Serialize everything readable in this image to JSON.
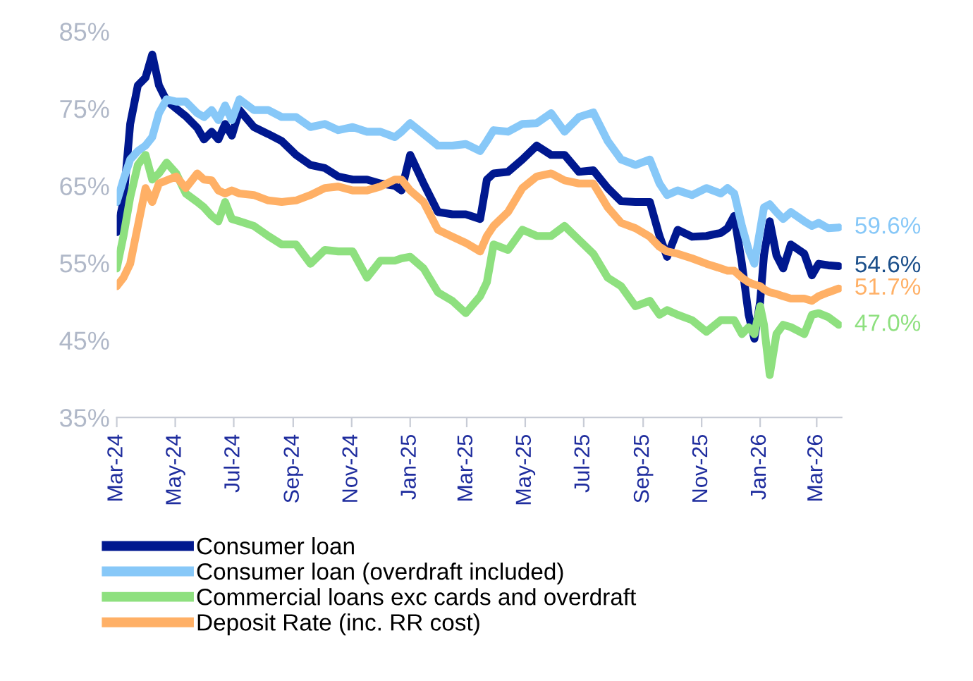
{
  "chart_data": {
    "type": "line",
    "x": [
      "2024-03-01",
      "2024-03-08",
      "2024-03-15",
      "2024-03-23",
      "2024-03-31",
      "2024-04-07",
      "2024-04-14",
      "2024-04-22",
      "2024-05-02",
      "2024-05-12",
      "2024-05-24",
      "2024-05-31",
      "2024-06-08",
      "2024-06-15",
      "2024-06-22",
      "2024-06-29",
      "2024-07-07",
      "2024-07-22",
      "2024-08-06",
      "2024-08-20",
      "2024-09-04",
      "2024-09-19",
      "2024-10-04",
      "2024-10-18",
      "2024-11-02",
      "2024-11-17",
      "2024-12-01",
      "2024-12-16",
      "2024-12-23",
      "2025-01-01",
      "2025-01-15",
      "2025-01-30",
      "2025-02-14",
      "2025-02-28",
      "2025-03-15",
      "2025-03-22",
      "2025-03-29",
      "2025-04-13",
      "2025-04-28",
      "2025-05-13",
      "2025-05-28",
      "2025-06-11",
      "2025-06-26",
      "2025-07-11",
      "2025-07-26",
      "2025-08-09",
      "2025-08-24",
      "2025-09-08",
      "2025-09-18",
      "2025-09-26",
      "2025-10-07",
      "2025-10-22",
      "2025-11-06",
      "2025-11-21",
      "2025-11-28",
      "2025-12-05",
      "2025-12-13",
      "2025-12-20",
      "2025-12-26",
      "2026-01-01",
      "2026-01-05",
      "2026-01-11",
      "2026-01-18",
      "2026-01-25",
      "2026-02-02",
      "2026-02-16",
      "2026-02-24",
      "2026-03-03",
      "2026-03-13",
      "2026-03-24"
    ],
    "series": [
      {
        "name": "Consumer loan",
        "color": "#00188f",
        "values": [
          59,
          63,
          73,
          78,
          79,
          82,
          78,
          76,
          75,
          74,
          72.5,
          71,
          72,
          71,
          73,
          71.5,
          74.8,
          72.6,
          71.7,
          70.8,
          69,
          67.7,
          67.3,
          66.2,
          65.8,
          65.8,
          65.3,
          65,
          64.4,
          69,
          65.3,
          61.6,
          61.3,
          61.3,
          60.7,
          65.8,
          66.6,
          66.8,
          68.4,
          70.2,
          69,
          69,
          66.8,
          67,
          64.7,
          63,
          62.9,
          62.9,
          58.5,
          55.8,
          59.3,
          58.4,
          58.5,
          58.9,
          59.5,
          61.1,
          54.9,
          48.3,
          45.2,
          50,
          56,
          60.4,
          56,
          54.3,
          57.4,
          56.2,
          53.4,
          54.9,
          54.7,
          54.6
        ]
      },
      {
        "name": "Consumer loan (overdraft included)",
        "color": "#87c8f8",
        "values": [
          62.9,
          65.8,
          68.4,
          69.5,
          70.2,
          71.3,
          74.4,
          76.2,
          75.9,
          75.9,
          74.4,
          73.9,
          74.8,
          73.5,
          75.4,
          73.5,
          76.2,
          74.8,
          74.8,
          73.9,
          73.9,
          72.6,
          73,
          72.2,
          72.6,
          72,
          72,
          71.3,
          72,
          73.1,
          71.7,
          70.2,
          70.2,
          70.4,
          69.5,
          70.8,
          72.2,
          72,
          73,
          73.1,
          74.4,
          72,
          73.9,
          74.5,
          70.8,
          68.4,
          67.7,
          68.4,
          65.3,
          63.8,
          64.4,
          63.8,
          64.7,
          64,
          64.7,
          64,
          59.8,
          56.7,
          54.9,
          59.3,
          62.2,
          62.6,
          61.6,
          60.7,
          61.6,
          60.4,
          59.8,
          60.2,
          59.5,
          59.6
        ]
      },
      {
        "name": "Commercial loans exc cards and overdraft",
        "color": "#8ee07f",
        "values": [
          54.3,
          58.5,
          63.5,
          67.7,
          69,
          65.8,
          66.6,
          68,
          66.6,
          64,
          62.9,
          62.2,
          61.1,
          60.4,
          62.9,
          60.7,
          60.4,
          59.8,
          58.5,
          57.4,
          57.4,
          54.9,
          56.7,
          56.5,
          56.5,
          53.1,
          55.3,
          55.3,
          55.6,
          55.8,
          54.3,
          51.2,
          50.1,
          48.5,
          50.7,
          52.5,
          57.4,
          56.7,
          59.3,
          58.5,
          58.5,
          59.8,
          58,
          56.2,
          53.1,
          52,
          49.4,
          50.1,
          48.3,
          48.9,
          48.3,
          47.6,
          46.1,
          47.6,
          47.6,
          47.6,
          45.8,
          46.7,
          45.8,
          49.4,
          47,
          40.5,
          45.8,
          47,
          46.7,
          45.8,
          48.3,
          48.5,
          48,
          47.0
        ]
      },
      {
        "name": "Deposit Rate (inc. RR cost)",
        "color": "#ffb066",
        "values": [
          52,
          53.1,
          54.9,
          59.8,
          64.7,
          62.9,
          65.3,
          65.7,
          66.2,
          64.7,
          66.6,
          65.8,
          65.7,
          64.4,
          64,
          64.4,
          64,
          63.8,
          63.1,
          62.9,
          63.1,
          63.8,
          64.7,
          64.9,
          64.4,
          64.4,
          64.9,
          65.8,
          65.8,
          64.4,
          62.9,
          59.3,
          58.4,
          57.6,
          56.5,
          58.5,
          59.8,
          61.6,
          64.7,
          66.2,
          66.6,
          65.7,
          65.3,
          65.3,
          62.2,
          60.2,
          59.5,
          58.4,
          57.1,
          56.5,
          56.2,
          55.6,
          54.9,
          54.3,
          54,
          54,
          53.1,
          52.5,
          52.2,
          52,
          51.6,
          51.2,
          51,
          50.7,
          50.4,
          50.4,
          50.1,
          50.7,
          51.2,
          51.7
        ]
      }
    ],
    "annotations": [
      {
        "text": "59.6%",
        "x": "2026-03-24",
        "y": 59.6
      },
      {
        "text": "54.6%",
        "x": "2026-03-24",
        "y": 54.6
      },
      {
        "text": "51.7%",
        "x": "2026-03-24",
        "y": 51.7
      },
      {
        "text": "47.0%",
        "x": "2026-03-24",
        "y": 47.0
      }
    ],
    "xlim": [
      "2024-03-01",
      "2026-03-27"
    ],
    "xticks": [
      {
        "value": "2024-03-01",
        "label": "Mar-24"
      },
      {
        "value": "2024-05-01",
        "label": "May-24"
      },
      {
        "value": "2024-07-01",
        "label": "Jul-24"
      },
      {
        "value": "2024-09-01",
        "label": "Sep-24"
      },
      {
        "value": "2024-11-01",
        "label": "Nov-24"
      },
      {
        "value": "2025-01-01",
        "label": "Jan-25"
      },
      {
        "value": "2025-03-01",
        "label": "Mar-25"
      },
      {
        "value": "2025-05-01",
        "label": "May-25"
      },
      {
        "value": "2025-07-01",
        "label": "Jul-25"
      },
      {
        "value": "2025-09-01",
        "label": "Sep-25"
      },
      {
        "value": "2025-11-01",
        "label": "Nov-25"
      },
      {
        "value": "2026-01-01",
        "label": "Jan-26"
      },
      {
        "value": "2026-03-01",
        "label": "Mar-26"
      }
    ],
    "ylim": [
      35,
      85
    ],
    "yticks": [
      {
        "value": 35,
        "label": "35%"
      },
      {
        "value": 45,
        "label": "45%"
      },
      {
        "value": 55,
        "label": "55%"
      },
      {
        "value": 65,
        "label": "65%"
      },
      {
        "value": 75,
        "label": "75%"
      },
      {
        "value": 85,
        "label": "85%"
      }
    ],
    "grid": false,
    "legend": "bottom",
    "marker": "none",
    "line_style": "solid"
  }
}
